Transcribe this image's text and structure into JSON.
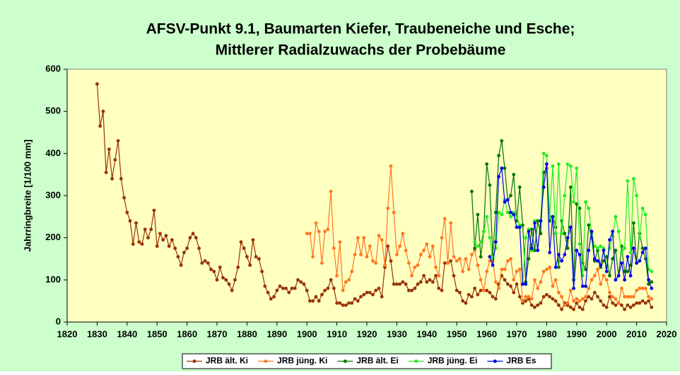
{
  "chart_data": {
    "type": "line",
    "title": "AFSV-Punkt 9.1, Baumarten Kiefer, Traubeneiche und Esche;",
    "subtitle": "Mittlerer Radialzuwachs der Probebäume",
    "y_label": "Jahrringbreite [1/100 mm]",
    "xlim": [
      1820,
      2020
    ],
    "xticks": [
      1820,
      1830,
      1840,
      1850,
      1860,
      1870,
      1880,
      1890,
      1900,
      1910,
      1920,
      1930,
      1940,
      1950,
      1960,
      1970,
      1980,
      1990,
      2000,
      2010,
      2020
    ],
    "ylim": [
      0,
      600
    ],
    "yticks": [
      0,
      100,
      200,
      300,
      400,
      500,
      600
    ],
    "legend": "bottom",
    "x": [
      1830,
      1831,
      1832,
      1833,
      1834,
      1835,
      1836,
      1837,
      1838,
      1839,
      1840,
      1841,
      1842,
      1843,
      1844,
      1845,
      1846,
      1847,
      1848,
      1849,
      1850,
      1851,
      1852,
      1853,
      1854,
      1855,
      1856,
      1857,
      1858,
      1859,
      1860,
      1861,
      1862,
      1863,
      1864,
      1865,
      1866,
      1867,
      1868,
      1869,
      1870,
      1871,
      1872,
      1873,
      1874,
      1875,
      1876,
      1877,
      1878,
      1879,
      1880,
      1881,
      1882,
      1883,
      1884,
      1885,
      1886,
      1887,
      1888,
      1889,
      1890,
      1891,
      1892,
      1893,
      1894,
      1895,
      1896,
      1897,
      1898,
      1899,
      1900,
      1901,
      1902,
      1903,
      1904,
      1905,
      1906,
      1907,
      1908,
      1909,
      1910,
      1911,
      1912,
      1913,
      1914,
      1915,
      1916,
      1917,
      1918,
      1919,
      1920,
      1921,
      1922,
      1923,
      1924,
      1925,
      1926,
      1927,
      1928,
      1929,
      1930,
      1931,
      1932,
      1933,
      1934,
      1935,
      1936,
      1937,
      1938,
      1939,
      1940,
      1941,
      1942,
      1943,
      1944,
      1945,
      1946,
      1947,
      1948,
      1949,
      1950,
      1951,
      1952,
      1953,
      1954,
      1955,
      1956,
      1957,
      1958,
      1959,
      1960,
      1961,
      1962,
      1963,
      1964,
      1965,
      1966,
      1967,
      1968,
      1969,
      1970,
      1971,
      1972,
      1973,
      1974,
      1975,
      1976,
      1977,
      1978,
      1979,
      1980,
      1981,
      1982,
      1983,
      1984,
      1985,
      1986,
      1987,
      1988,
      1989,
      1990,
      1991,
      1992,
      1993,
      1994,
      1995,
      1996,
      1997,
      1998,
      1999,
      2000,
      2001,
      2002,
      2003,
      2004,
      2005,
      2006,
      2007,
      2008,
      2009,
      2010,
      2011,
      2012,
      2013,
      2014,
      2015
    ],
    "series": [
      {
        "name": "JRB ält. Ki",
        "color": "#993300",
        "values": [
          565,
          465,
          500,
          355,
          410,
          340,
          385,
          430,
          340,
          295,
          260,
          240,
          185,
          235,
          190,
          185,
          220,
          200,
          220,
          265,
          180,
          210,
          195,
          205,
          180,
          195,
          175,
          155,
          135,
          165,
          175,
          200,
          210,
          200,
          175,
          140,
          145,
          140,
          125,
          120,
          100,
          130,
          105,
          100,
          90,
          75,
          100,
          130,
          190,
          175,
          155,
          135,
          195,
          155,
          150,
          120,
          85,
          70,
          55,
          60,
          75,
          85,
          80,
          80,
          70,
          80,
          80,
          100,
          95,
          90,
          75,
          50,
          50,
          60,
          50,
          65,
          75,
          80,
          100,
          80,
          45,
          45,
          40,
          40,
          45,
          45,
          55,
          50,
          60,
          65,
          70,
          70,
          65,
          75,
          80,
          60,
          130,
          180,
          145,
          90,
          90,
          90,
          95,
          90,
          75,
          75,
          80,
          90,
          95,
          110,
          95,
          100,
          95,
          110,
          80,
          75,
          140,
          140,
          145,
          110,
          75,
          70,
          50,
          45,
          65,
          60,
          80,
          65,
          75,
          75,
          75,
          70,
          60,
          55,
          90,
          110,
          100,
          90,
          85,
          70,
          90,
          60,
          45,
          50,
          55,
          40,
          35,
          40,
          45,
          60,
          65,
          60,
          55,
          50,
          40,
          30,
          45,
          40,
          35,
          30,
          45,
          35,
          30,
          50,
          60,
          55,
          70,
          60,
          50,
          40,
          35,
          60,
          45,
          40,
          45,
          40,
          30,
          40,
          35,
          40,
          45,
          45,
          50,
          45,
          50,
          35
        ]
      },
      {
        "name": "JRB jüng. Ki",
        "color": "#ff7722",
        "values": [
          null,
          null,
          null,
          null,
          null,
          null,
          null,
          null,
          null,
          null,
          null,
          null,
          null,
          null,
          null,
          null,
          null,
          null,
          null,
          null,
          null,
          null,
          null,
          null,
          null,
          null,
          null,
          null,
          null,
          null,
          null,
          null,
          null,
          null,
          null,
          null,
          null,
          null,
          null,
          null,
          null,
          null,
          null,
          null,
          null,
          null,
          null,
          null,
          null,
          null,
          null,
          null,
          null,
          null,
          null,
          null,
          null,
          null,
          null,
          null,
          null,
          null,
          null,
          null,
          null,
          null,
          null,
          null,
          null,
          null,
          210,
          210,
          155,
          235,
          215,
          140,
          215,
          220,
          310,
          175,
          110,
          190,
          75,
          95,
          100,
          120,
          160,
          200,
          160,
          200,
          155,
          180,
          145,
          140,
          205,
          195,
          135,
          270,
          370,
          260,
          160,
          180,
          210,
          170,
          140,
          110,
          130,
          135,
          160,
          170,
          185,
          155,
          180,
          130,
          110,
          200,
          245,
          140,
          235,
          155,
          145,
          150,
          120,
          150,
          125,
          160,
          170,
          135,
          100,
          75,
          120,
          145,
          145,
          95,
          80,
          125,
          125,
          145,
          150,
          100,
          120,
          125,
          50,
          60,
          60,
          55,
          100,
          80,
          95,
          120,
          125,
          130,
          85,
          100,
          70,
          60,
          40,
          45,
          75,
          50,
          55,
          50,
          55,
          60,
          80,
          100,
          110,
          125,
          90,
          110,
          100,
          70,
          60,
          55,
          45,
          80,
          60,
          60,
          60,
          60,
          75,
          80,
          80,
          80,
          60,
          55
        ]
      },
      {
        "name": "JRB ält. Ei",
        "color": "#007700",
        "values": [
          null,
          null,
          null,
          null,
          null,
          null,
          null,
          null,
          null,
          null,
          null,
          null,
          null,
          null,
          null,
          null,
          null,
          null,
          null,
          null,
          null,
          null,
          null,
          null,
          null,
          null,
          null,
          null,
          null,
          null,
          null,
          null,
          null,
          null,
          null,
          null,
          null,
          null,
          null,
          null,
          null,
          null,
          null,
          null,
          null,
          null,
          null,
          null,
          null,
          null,
          null,
          null,
          null,
          null,
          null,
          null,
          null,
          null,
          null,
          null,
          null,
          null,
          null,
          null,
          null,
          null,
          null,
          null,
          null,
          null,
          null,
          null,
          null,
          null,
          null,
          null,
          null,
          null,
          null,
          null,
          null,
          null,
          null,
          null,
          null,
          null,
          null,
          null,
          null,
          null,
          null,
          null,
          null,
          null,
          null,
          null,
          null,
          null,
          null,
          null,
          null,
          null,
          null,
          null,
          null,
          null,
          null,
          null,
          null,
          null,
          null,
          null,
          null,
          null,
          null,
          null,
          null,
          null,
          null,
          null,
          null,
          null,
          null,
          null,
          null,
          310,
          175,
          255,
          155,
          215,
          375,
          325,
          160,
          260,
          395,
          430,
          365,
          290,
          300,
          350,
          240,
          320,
          230,
          95,
          150,
          220,
          170,
          240,
          210,
          355,
          365,
          240,
          250,
          225,
          130,
          240,
          210,
          175,
          320,
          100,
          280,
          270,
          140,
          125,
          230,
          200,
          145,
          170,
          130,
          145,
          155,
          110,
          150,
          170,
          110,
          180,
          120,
          120,
          135,
          235,
          140,
          210,
          175,
          150,
          90,
          95
        ]
      },
      {
        "name": "JRB jüng. Ei",
        "color": "#22ee22",
        "values": [
          null,
          null,
          null,
          null,
          null,
          null,
          null,
          null,
          null,
          null,
          null,
          null,
          null,
          null,
          null,
          null,
          null,
          null,
          null,
          null,
          null,
          null,
          null,
          null,
          null,
          null,
          null,
          null,
          null,
          null,
          null,
          null,
          null,
          null,
          null,
          null,
          null,
          null,
          null,
          null,
          null,
          null,
          null,
          null,
          null,
          null,
          null,
          null,
          null,
          null,
          null,
          null,
          null,
          null,
          null,
          null,
          null,
          null,
          null,
          null,
          null,
          null,
          null,
          null,
          null,
          null,
          null,
          null,
          null,
          null,
          null,
          null,
          null,
          null,
          null,
          null,
          null,
          null,
          null,
          null,
          null,
          null,
          null,
          null,
          null,
          null,
          null,
          null,
          null,
          null,
          null,
          null,
          null,
          null,
          null,
          null,
          null,
          null,
          null,
          null,
          null,
          null,
          null,
          null,
          null,
          null,
          null,
          null,
          null,
          null,
          null,
          null,
          null,
          null,
          null,
          null,
          null,
          null,
          null,
          null,
          null,
          null,
          null,
          null,
          null,
          null,
          190,
          180,
          190,
          215,
          250,
          200,
          150,
          175,
          260,
          255,
          290,
          260,
          250,
          260,
          250,
          230,
          90,
          200,
          220,
          170,
          240,
          170,
          240,
          400,
          395,
          250,
          370,
          210,
          375,
          210,
          300,
          375,
          370,
          285,
          365,
          185,
          110,
          285,
          270,
          210,
          180,
          175,
          180,
          175,
          130,
          175,
          205,
          250,
          215,
          165,
          175,
          335,
          165,
          340,
          300,
          200,
          270,
          255,
          125,
          120
        ]
      },
      {
        "name": "JRB Es",
        "color": "#0000ee",
        "values": [
          null,
          null,
          null,
          null,
          null,
          null,
          null,
          null,
          null,
          null,
          null,
          null,
          null,
          null,
          null,
          null,
          null,
          null,
          null,
          null,
          null,
          null,
          null,
          null,
          null,
          null,
          null,
          null,
          null,
          null,
          null,
          null,
          null,
          null,
          null,
          null,
          null,
          null,
          null,
          null,
          null,
          null,
          null,
          null,
          null,
          null,
          null,
          null,
          null,
          null,
          null,
          null,
          null,
          null,
          null,
          null,
          null,
          null,
          null,
          null,
          null,
          null,
          null,
          null,
          null,
          null,
          null,
          null,
          null,
          null,
          null,
          null,
          null,
          null,
          null,
          null,
          null,
          null,
          null,
          null,
          null,
          null,
          null,
          null,
          null,
          null,
          null,
          null,
          null,
          null,
          null,
          null,
          null,
          null,
          null,
          null,
          null,
          null,
          null,
          null,
          null,
          null,
          null,
          null,
          null,
          null,
          null,
          null,
          null,
          null,
          null,
          null,
          null,
          null,
          null,
          null,
          null,
          null,
          null,
          null,
          null,
          null,
          null,
          null,
          null,
          null,
          null,
          null,
          null,
          null,
          null,
          155,
          135,
          190,
          345,
          365,
          285,
          290,
          260,
          255,
          225,
          225,
          90,
          90,
          215,
          175,
          235,
          170,
          240,
          320,
          375,
          165,
          250,
          130,
          160,
          145,
          160,
          200,
          225,
          80,
          170,
          160,
          85,
          85,
          170,
          215,
          150,
          145,
          135,
          170,
          120,
          195,
          215,
          100,
          110,
          140,
          100,
          155,
          110,
          175,
          140,
          145,
          165,
          175,
          100,
          80
        ]
      }
    ]
  }
}
